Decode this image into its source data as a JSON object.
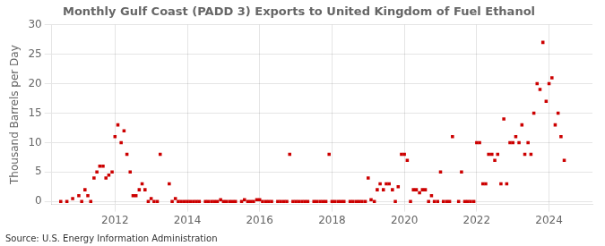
{
  "chart_data": {
    "type": "scatter",
    "title": "Monthly Gulf Coast (PADD 3) Exports to United Kingdom of Fuel Ethanol",
    "ylabel": "Thousand Barrels per Day",
    "annotations": [
      "Source: U.S. Energy Information Administration"
    ],
    "color": "#cc0000",
    "marker": "square",
    "grid": true,
    "xlim": [
      2010.25,
      2025.2
    ],
    "xticks": [
      2012,
      2014,
      2016,
      2018,
      2020,
      2022,
      2024
    ],
    "ylim": [
      -0.5,
      30
    ],
    "yticks": [
      0,
      5,
      10,
      15,
      20,
      25,
      30
    ],
    "x": [
      2010.5,
      2010.67,
      2010.83,
      2011.0,
      2011.08,
      2011.17,
      2011.25,
      2011.33,
      2011.42,
      2011.5,
      2011.58,
      2011.67,
      2011.75,
      2011.83,
      2011.92,
      2012.0,
      2012.08,
      2012.17,
      2012.25,
      2012.33,
      2012.42,
      2012.5,
      2012.58,
      2012.67,
      2012.75,
      2012.83,
      2012.92,
      2013.0,
      2013.08,
      2013.17,
      2013.25,
      2013.5,
      2013.58,
      2013.67,
      2013.75,
      2013.83,
      2013.92,
      2014.0,
      2014.08,
      2014.17,
      2014.25,
      2014.33,
      2014.5,
      2014.58,
      2014.67,
      2014.75,
      2014.83,
      2014.92,
      2015.0,
      2015.08,
      2015.17,
      2015.25,
      2015.33,
      2015.5,
      2015.58,
      2015.67,
      2015.75,
      2015.83,
      2015.92,
      2016.0,
      2016.08,
      2016.17,
      2016.25,
      2016.33,
      2016.5,
      2016.58,
      2016.67,
      2016.75,
      2016.83,
      2016.92,
      2017.0,
      2017.08,
      2017.17,
      2017.25,
      2017.33,
      2017.5,
      2017.58,
      2017.67,
      2017.75,
      2017.83,
      2017.92,
      2018.0,
      2018.08,
      2018.17,
      2018.25,
      2018.33,
      2018.5,
      2018.58,
      2018.67,
      2018.75,
      2018.83,
      2018.92,
      2019.0,
      2019.08,
      2019.17,
      2019.25,
      2019.33,
      2019.42,
      2019.5,
      2019.58,
      2019.67,
      2019.75,
      2019.83,
      2019.92,
      2020.0,
      2020.08,
      2020.17,
      2020.25,
      2020.33,
      2020.42,
      2020.5,
      2020.58,
      2020.67,
      2020.75,
      2020.83,
      2020.92,
      2021.0,
      2021.08,
      2021.17,
      2021.25,
      2021.33,
      2021.5,
      2021.58,
      2021.67,
      2021.75,
      2021.83,
      2021.92,
      2022.0,
      2022.08,
      2022.17,
      2022.25,
      2022.33,
      2022.42,
      2022.5,
      2022.58,
      2022.67,
      2022.75,
      2022.83,
      2022.92,
      2023.0,
      2023.08,
      2023.17,
      2023.25,
      2023.33,
      2023.42,
      2023.5,
      2023.58,
      2023.67,
      2023.75,
      2023.83,
      2023.92,
      2024.0,
      2024.08,
      2024.17,
      2024.25,
      2024.33,
      2024.42
    ],
    "values": [
      0.0,
      0.0,
      0.5,
      1.0,
      0.0,
      2.0,
      1.0,
      0.0,
      4.0,
      5.0,
      6.0,
      6.0,
      4.0,
      4.5,
      5.0,
      11.0,
      13.0,
      10.0,
      12.0,
      8.0,
      5.0,
      1.0,
      1.0,
      2.0,
      3.0,
      2.0,
      0.0,
      0.5,
      0.0,
      0.0,
      8.0,
      3.0,
      0.0,
      0.5,
      0.0,
      0.0,
      0.0,
      0.0,
      0.0,
      0.0,
      0.0,
      0.0,
      0.0,
      0.0,
      0.0,
      0.0,
      0.0,
      0.3,
      0.0,
      0.0,
      0.0,
      0.0,
      0.0,
      0.0,
      0.3,
      0.0,
      0.0,
      0.0,
      0.3,
      0.3,
      0.0,
      0.0,
      0.0,
      0.0,
      0.0,
      0.0,
      0.0,
      0.0,
      8.0,
      0.0,
      0.0,
      0.0,
      0.0,
      0.0,
      0.0,
      0.0,
      0.0,
      0.0,
      0.0,
      0.0,
      8.0,
      0.0,
      0.0,
      0.0,
      0.0,
      0.0,
      0.0,
      0.0,
      0.0,
      0.0,
      0.0,
      0.0,
      4.0,
      0.3,
      0.0,
      2.0,
      3.0,
      2.0,
      3.0,
      3.0,
      2.0,
      0.0,
      2.5,
      8.0,
      8.0,
      7.0,
      0.0,
      2.0,
      2.0,
      1.5,
      2.0,
      2.0,
      0.0,
      1.0,
      0.0,
      0.0,
      5.0,
      0.0,
      0.0,
      0.0,
      11.0,
      0.0,
      5.0,
      0.0,
      0.0,
      0.0,
      0.0,
      10.0,
      10.0,
      3.0,
      3.0,
      8.0,
      8.0,
      7.0,
      8.0,
      3.0,
      14.0,
      3.0,
      10.0,
      10.0,
      11.0,
      10.0,
      13.0,
      8.0,
      10.0,
      8.0,
      15.0,
      20.0,
      19.0,
      27.0,
      17.0,
      20.0,
      21.0,
      13.0,
      15.0,
      11.0,
      7.0
    ]
  }
}
